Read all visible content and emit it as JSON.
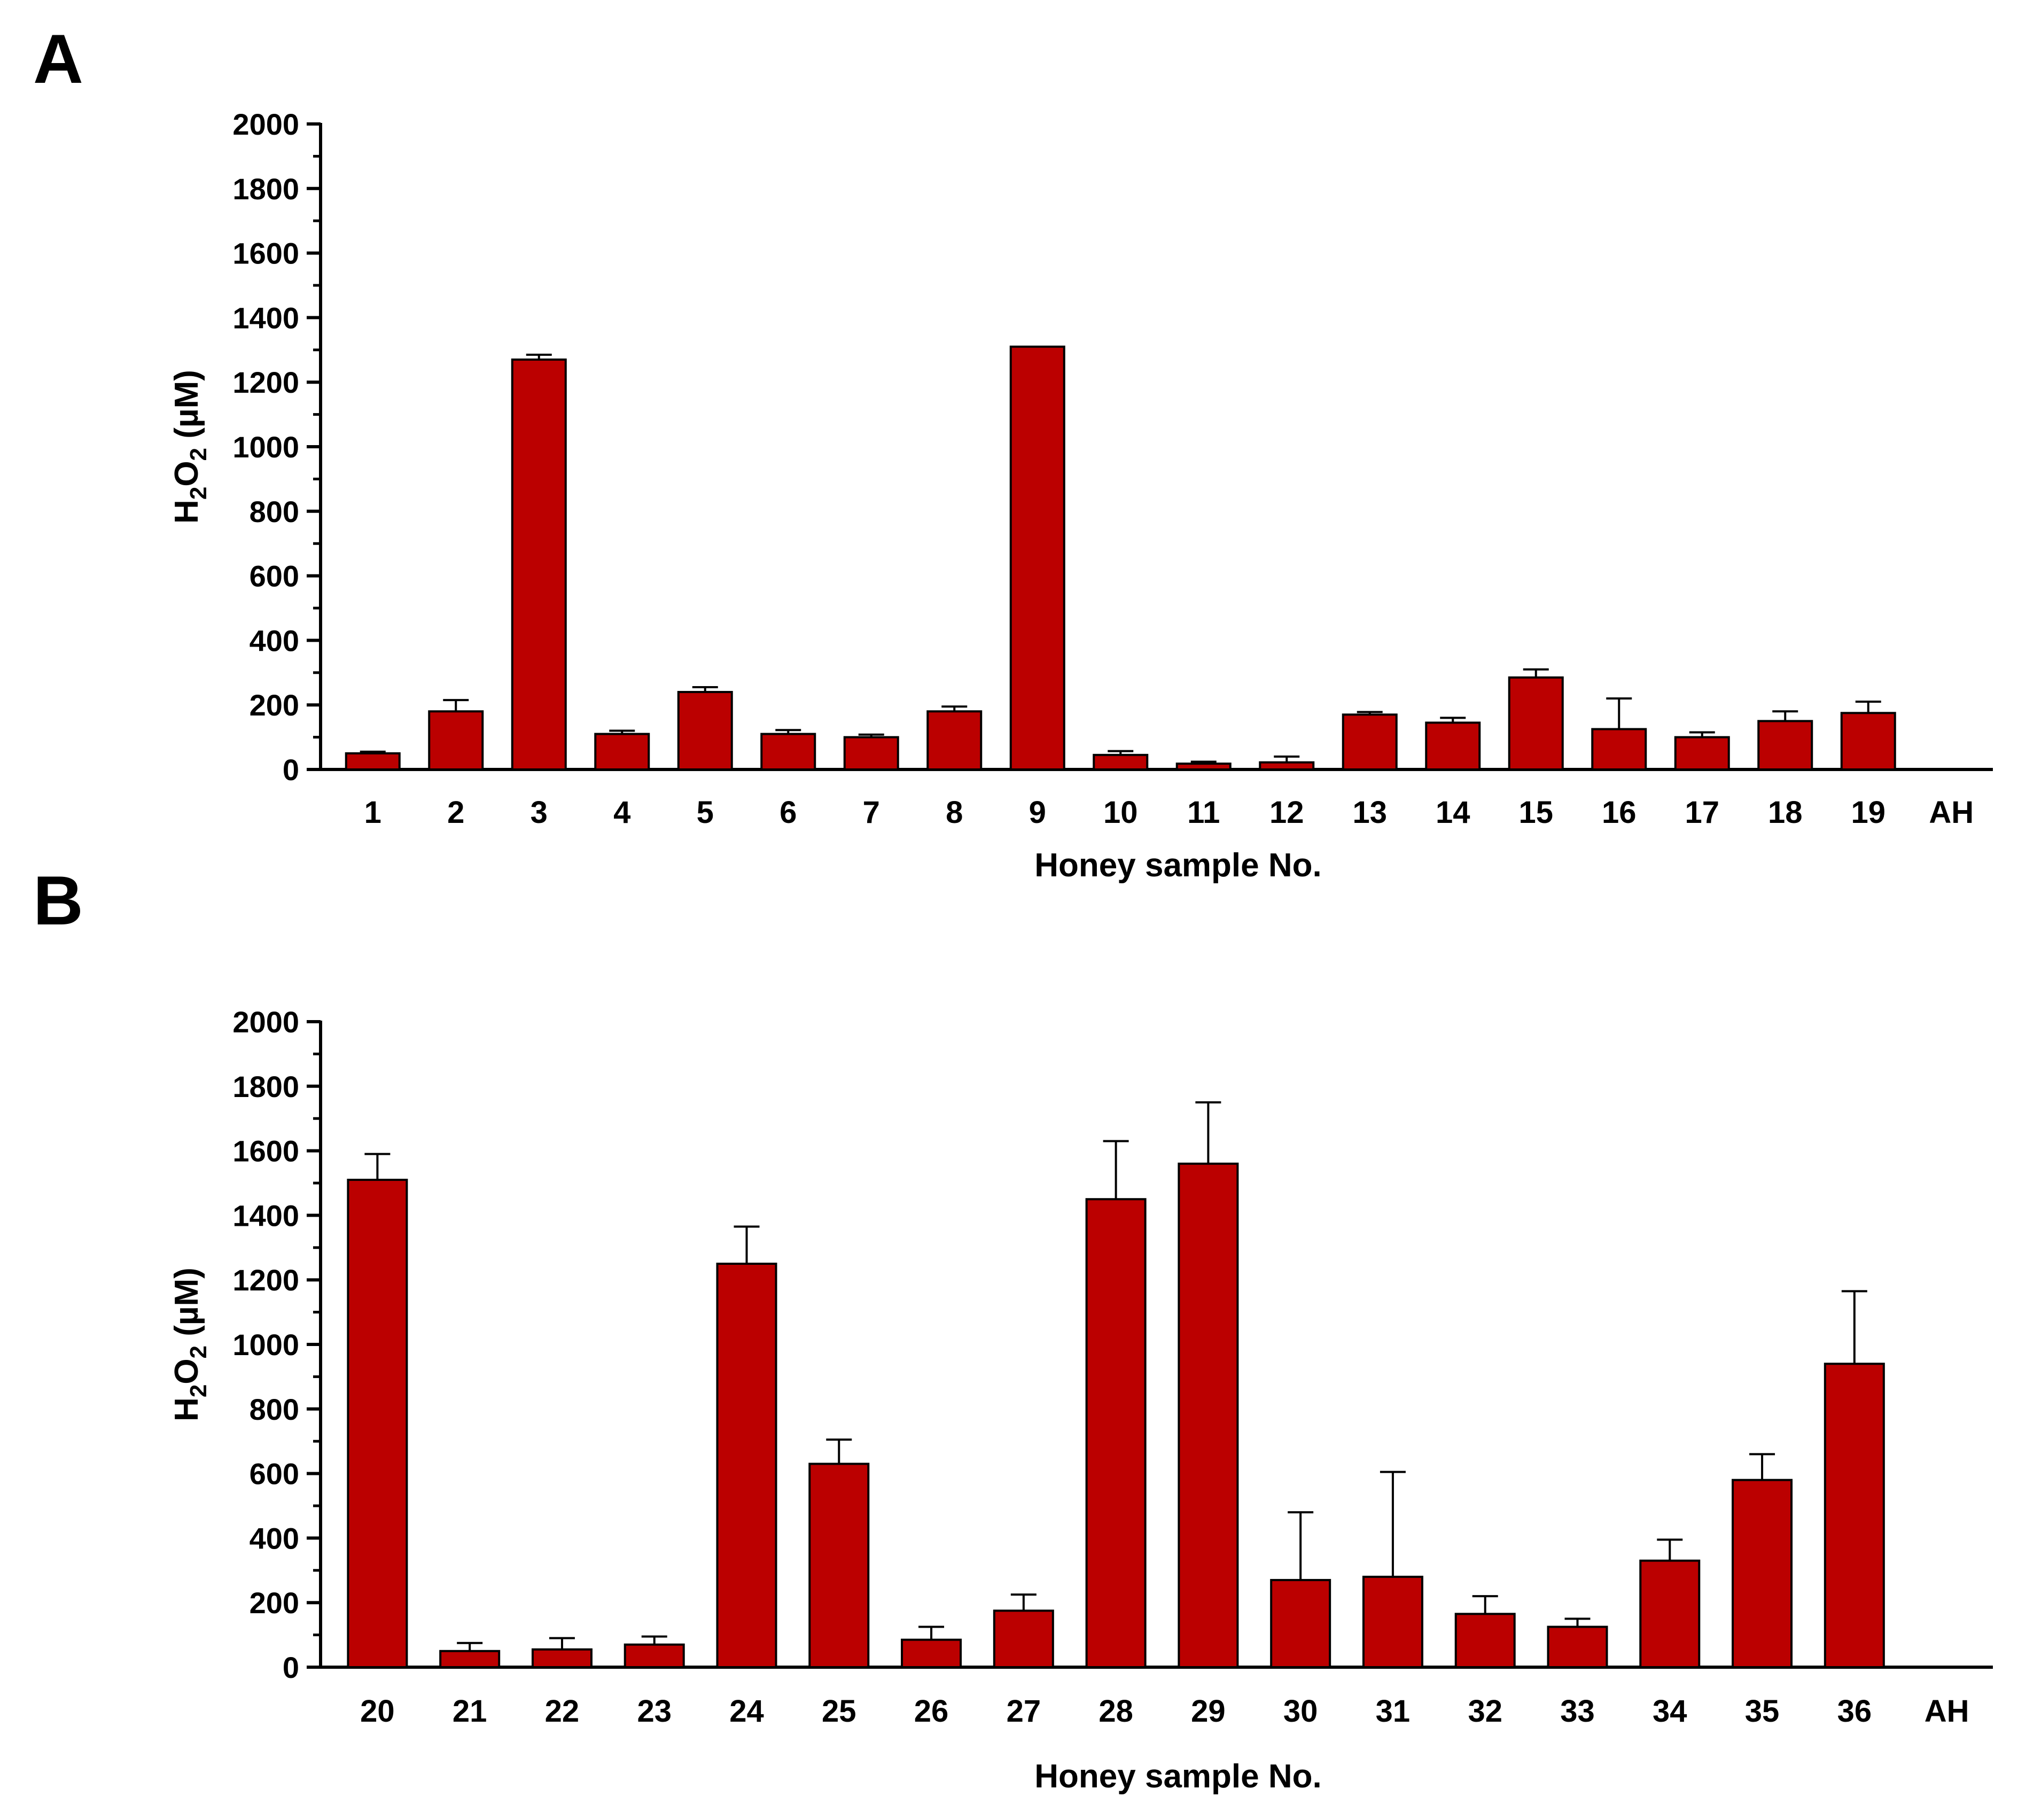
{
  "panels": {
    "a": {
      "letter": "A"
    },
    "b": {
      "letter": "B"
    }
  },
  "colors": {
    "bar": "#BB0000",
    "axis": "#000000"
  },
  "chart_data": [
    {
      "type": "bar",
      "panel": "A",
      "title": "",
      "xlabel": "Honey sample No.",
      "ylabel_main": "H",
      "ylabel_sub1": "2",
      "ylabel_mid": "O",
      "ylabel_sub2": "2",
      "ylabel_unit": " (µM)",
      "ylim": [
        0,
        2000
      ],
      "yticks": [
        0,
        200,
        400,
        600,
        800,
        1000,
        1200,
        1400,
        1600,
        1800,
        2000
      ],
      "categories": [
        "1",
        "2",
        "3",
        "4",
        "5",
        "6",
        "7",
        "8",
        "9",
        "10",
        "11",
        "12",
        "13",
        "14",
        "15",
        "16",
        "17",
        "18",
        "19",
        "AH"
      ],
      "values": [
        50,
        180,
        1270,
        110,
        240,
        110,
        100,
        180,
        1310,
        45,
        18,
        22,
        170,
        145,
        285,
        125,
        100,
        150,
        175,
        0
      ],
      "errors": [
        5,
        35,
        15,
        10,
        15,
        12,
        8,
        15,
        0,
        12,
        6,
        18,
        8,
        15,
        25,
        95,
        15,
        30,
        35,
        0
      ]
    },
    {
      "type": "bar",
      "panel": "B",
      "title": "",
      "xlabel": "Honey sample No.",
      "ylabel_main": "H",
      "ylabel_sub1": "2",
      "ylabel_mid": "O",
      "ylabel_sub2": "2",
      "ylabel_unit": " (µM)",
      "ylim": [
        0,
        2000
      ],
      "yticks": [
        0,
        200,
        400,
        600,
        800,
        1000,
        1200,
        1400,
        1600,
        1800,
        2000
      ],
      "categories": [
        "20",
        "21",
        "22",
        "23",
        "24",
        "25",
        "26",
        "27",
        "28",
        "29",
        "30",
        "31",
        "32",
        "33",
        "34",
        "35",
        "36",
        "AH"
      ],
      "values": [
        1510,
        50,
        55,
        70,
        1250,
        630,
        85,
        175,
        1450,
        1560,
        270,
        280,
        165,
        125,
        330,
        580,
        940,
        0
      ],
      "errors": [
        80,
        25,
        35,
        25,
        115,
        75,
        40,
        50,
        180,
        190,
        210,
        325,
        55,
        25,
        65,
        80,
        225,
        0
      ]
    }
  ]
}
